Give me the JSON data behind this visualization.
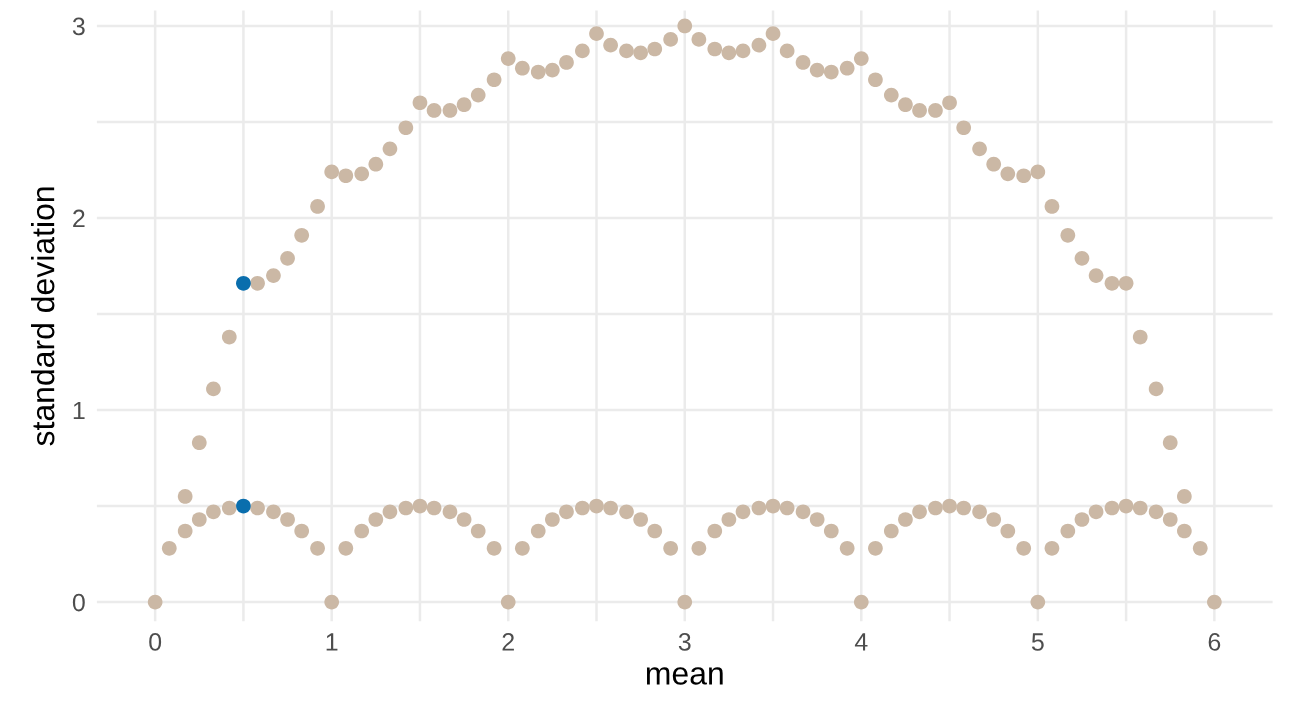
{
  "chart_data": {
    "type": "scatter",
    "xlabel": "mean",
    "ylabel": "standard deviation",
    "xlim": [
      -0.33,
      6.33
    ],
    "ylim": [
      -0.1,
      3.08
    ],
    "xticks": [
      0,
      {
        "value": 0.5,
        "label": null
      },
      1,
      {
        "value": 1.5,
        "label": null
      },
      2,
      {
        "value": 2.5,
        "label": null
      },
      3,
      {
        "value": 3.5,
        "label": null
      },
      4,
      {
        "value": 4.5,
        "label": null
      },
      5,
      {
        "value": 5.5,
        "label": null
      },
      6
    ],
    "yticks": [
      0,
      {
        "value": 0.5,
        "label": null
      },
      1,
      {
        "value": 1.5,
        "label": null
      },
      2,
      {
        "value": 2.5,
        "label": null
      },
      3
    ],
    "grid": true,
    "legend": false,
    "marker": "circle",
    "series": [
      {
        "color": "#cbb8a5",
        "x": [
          0,
          0.08,
          0.17,
          0.25,
          0.33,
          0.42,
          0.58,
          0.67,
          0.75,
          0.83,
          0.92,
          1,
          1.08,
          1.17,
          1.25,
          1.33,
          1.42,
          1.5,
          1.58,
          1.67,
          1.75,
          1.83,
          1.92,
          2,
          2.08,
          2.17,
          2.25,
          2.33,
          2.42,
          2.5,
          2.58,
          2.67,
          2.75,
          2.83,
          2.92,
          3,
          3.08,
          3.17,
          3.25,
          3.33,
          3.42,
          3.5,
          3.58,
          3.67,
          3.75,
          3.83,
          3.92,
          4,
          4.08,
          4.17,
          4.25,
          4.33,
          4.42,
          4.5,
          4.58,
          4.67,
          4.75,
          4.83,
          4.92,
          5,
          5.08,
          5.17,
          5.25,
          5.33,
          5.42,
          5.5,
          5.58,
          5.67,
          5.75,
          5.83,
          5.92,
          6
        ],
        "values": [
          0,
          0.28,
          0.37,
          0.43,
          0.47,
          0.49,
          0.49,
          0.47,
          0.43,
          0.37,
          0.28,
          0,
          0.28,
          0.37,
          0.43,
          0.47,
          0.49,
          0.5,
          0.49,
          0.47,
          0.43,
          0.37,
          0.28,
          0,
          0.28,
          0.37,
          0.43,
          0.47,
          0.49,
          0.5,
          0.49,
          0.47,
          0.43,
          0.37,
          0.28,
          0,
          0.28,
          0.37,
          0.43,
          0.47,
          0.49,
          0.5,
          0.49,
          0.47,
          0.43,
          0.37,
          0.28,
          0,
          0.28,
          0.37,
          0.43,
          0.47,
          0.49,
          0.5,
          0.49,
          0.47,
          0.43,
          0.37,
          0.28,
          0,
          0.28,
          0.37,
          0.43,
          0.47,
          0.49,
          0.5,
          0.49,
          0.47,
          0.43,
          0.37,
          0.28,
          0
        ]
      },
      {
        "color": "#cbb8a5",
        "x": [
          0.17,
          0.25,
          0.33,
          0.42,
          0.58,
          0.67,
          0.75,
          0.83,
          0.92,
          1,
          1.08,
          1.17,
          1.25,
          1.33,
          1.42,
          1.5,
          1.58,
          1.67,
          1.75,
          1.83,
          1.92,
          2,
          2.08,
          2.17,
          2.25,
          2.33,
          2.42,
          2.5,
          2.58,
          2.67,
          2.75,
          2.83,
          2.92,
          3,
          3.08,
          3.17,
          3.25,
          3.33,
          3.42,
          3.5,
          3.58,
          3.67,
          3.75,
          3.83,
          3.92,
          4,
          4.08,
          4.17,
          4.25,
          4.33,
          4.42,
          4.5,
          4.58,
          4.67,
          4.75,
          4.83,
          4.92,
          5,
          5.08,
          5.17,
          5.25,
          5.33,
          5.42,
          5.5,
          5.58,
          5.67,
          5.75,
          5.83
        ],
        "values": [
          0.55,
          0.83,
          1.11,
          1.38,
          1.66,
          1.7,
          1.79,
          1.91,
          2.06,
          2.24,
          2.22,
          2.23,
          2.28,
          2.36,
          2.47,
          2.6,
          2.56,
          2.56,
          2.59,
          2.64,
          2.72,
          2.83,
          2.78,
          2.76,
          2.77,
          2.81,
          2.87,
          2.96,
          2.9,
          2.87,
          2.86,
          2.88,
          2.93,
          3,
          2.93,
          2.88,
          2.86,
          2.87,
          2.9,
          2.96,
          2.87,
          2.81,
          2.77,
          2.76,
          2.78,
          2.83,
          2.72,
          2.64,
          2.59,
          2.56,
          2.56,
          2.6,
          2.47,
          2.36,
          2.28,
          2.23,
          2.22,
          2.24,
          2.06,
          1.91,
          1.79,
          1.7,
          1.66,
          1.66,
          1.38,
          1.11,
          0.83,
          0.55
        ]
      },
      {
        "color": "#0a6ead",
        "x": [
          0.5,
          0.5
        ],
        "values": [
          0.5,
          1.66
        ]
      }
    ]
  }
}
